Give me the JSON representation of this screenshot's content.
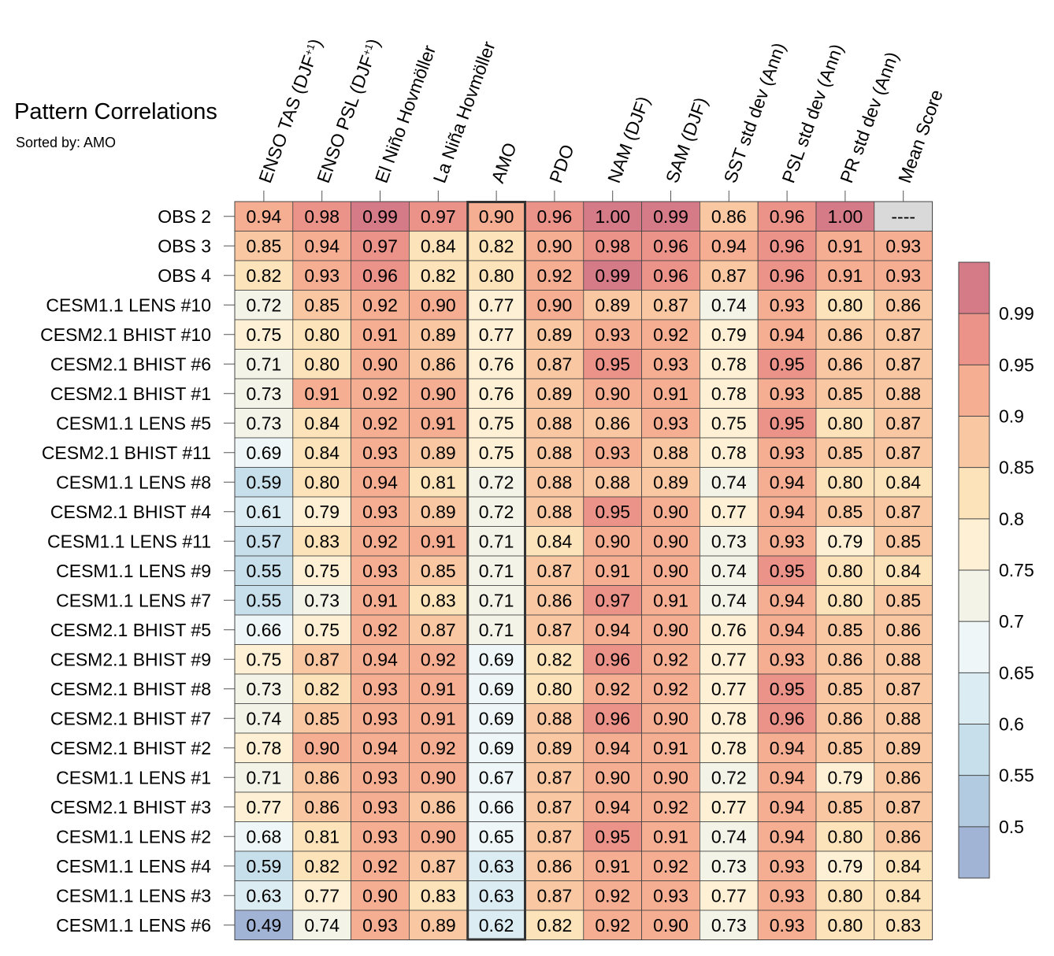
{
  "title": "Pattern Correlations",
  "subtitle": "Sorted by: AMO",
  "chart_data": {
    "type": "heatmap",
    "columns": [
      "ENSO TAS (DJF+1)",
      "ENSO PSL (DJF+1)",
      "El Niño Hovmöller",
      "La Niña Hovmöller",
      "AMO",
      "PDO",
      "NAM (DJF)",
      "SAM (DJF)",
      "SST std dev (Ann)",
      "PSL std dev (Ann)",
      "PR std dev (Ann)",
      "Mean Score"
    ],
    "highlighted_column": "AMO",
    "rows": [
      {
        "label": "OBS 2",
        "values": [
          "0.94",
          "0.98",
          "0.99",
          "0.97",
          "0.90",
          "0.96",
          "1.00",
          "0.99",
          "0.86",
          "0.96",
          "1.00",
          "----"
        ]
      },
      {
        "label": "OBS 3",
        "values": [
          "0.85",
          "0.94",
          "0.97",
          "0.84",
          "0.82",
          "0.90",
          "0.98",
          "0.96",
          "0.94",
          "0.96",
          "0.91",
          "0.93"
        ]
      },
      {
        "label": "OBS 4",
        "values": [
          "0.82",
          "0.93",
          "0.96",
          "0.82",
          "0.80",
          "0.92",
          "0.99",
          "0.96",
          "0.87",
          "0.96",
          "0.91",
          "0.93"
        ]
      },
      {
        "label": "CESM1.1 LENS #10",
        "values": [
          "0.72",
          "0.85",
          "0.92",
          "0.90",
          "0.77",
          "0.90",
          "0.89",
          "0.87",
          "0.74",
          "0.93",
          "0.80",
          "0.86"
        ]
      },
      {
        "label": "CESM2.1 BHIST #10",
        "values": [
          "0.75",
          "0.80",
          "0.91",
          "0.89",
          "0.77",
          "0.89",
          "0.93",
          "0.92",
          "0.79",
          "0.94",
          "0.86",
          "0.87"
        ]
      },
      {
        "label": "CESM2.1 BHIST #6",
        "values": [
          "0.71",
          "0.80",
          "0.90",
          "0.86",
          "0.76",
          "0.87",
          "0.95",
          "0.93",
          "0.78",
          "0.95",
          "0.86",
          "0.87"
        ]
      },
      {
        "label": "CESM2.1 BHIST #1",
        "values": [
          "0.73",
          "0.91",
          "0.92",
          "0.90",
          "0.76",
          "0.89",
          "0.90",
          "0.91",
          "0.78",
          "0.93",
          "0.85",
          "0.88"
        ]
      },
      {
        "label": "CESM1.1 LENS #5",
        "values": [
          "0.73",
          "0.84",
          "0.92",
          "0.91",
          "0.75",
          "0.88",
          "0.86",
          "0.93",
          "0.75",
          "0.95",
          "0.80",
          "0.87"
        ]
      },
      {
        "label": "CESM2.1 BHIST #11",
        "values": [
          "0.69",
          "0.84",
          "0.93",
          "0.89",
          "0.75",
          "0.88",
          "0.93",
          "0.88",
          "0.78",
          "0.93",
          "0.85",
          "0.87"
        ]
      },
      {
        "label": "CESM1.1 LENS #8",
        "values": [
          "0.59",
          "0.80",
          "0.94",
          "0.81",
          "0.72",
          "0.88",
          "0.88",
          "0.89",
          "0.74",
          "0.94",
          "0.80",
          "0.84"
        ]
      },
      {
        "label": "CESM2.1 BHIST #4",
        "values": [
          "0.61",
          "0.79",
          "0.93",
          "0.89",
          "0.72",
          "0.88",
          "0.95",
          "0.90",
          "0.77",
          "0.94",
          "0.85",
          "0.87"
        ]
      },
      {
        "label": "CESM1.1 LENS #11",
        "values": [
          "0.57",
          "0.83",
          "0.92",
          "0.91",
          "0.71",
          "0.84",
          "0.90",
          "0.90",
          "0.73",
          "0.93",
          "0.79",
          "0.85"
        ]
      },
      {
        "label": "CESM1.1 LENS #9",
        "values": [
          "0.55",
          "0.75",
          "0.93",
          "0.85",
          "0.71",
          "0.87",
          "0.91",
          "0.90",
          "0.74",
          "0.95",
          "0.80",
          "0.84"
        ]
      },
      {
        "label": "CESM1.1 LENS #7",
        "values": [
          "0.55",
          "0.73",
          "0.91",
          "0.83",
          "0.71",
          "0.86",
          "0.97",
          "0.91",
          "0.74",
          "0.94",
          "0.80",
          "0.85"
        ]
      },
      {
        "label": "CESM2.1 BHIST #5",
        "values": [
          "0.66",
          "0.75",
          "0.92",
          "0.87",
          "0.71",
          "0.87",
          "0.94",
          "0.90",
          "0.76",
          "0.94",
          "0.85",
          "0.86"
        ]
      },
      {
        "label": "CESM2.1 BHIST #9",
        "values": [
          "0.75",
          "0.87",
          "0.94",
          "0.92",
          "0.69",
          "0.82",
          "0.96",
          "0.92",
          "0.77",
          "0.93",
          "0.86",
          "0.88"
        ]
      },
      {
        "label": "CESM2.1 BHIST #8",
        "values": [
          "0.73",
          "0.82",
          "0.93",
          "0.91",
          "0.69",
          "0.80",
          "0.92",
          "0.92",
          "0.77",
          "0.95",
          "0.85",
          "0.87"
        ]
      },
      {
        "label": "CESM2.1 BHIST #7",
        "values": [
          "0.74",
          "0.85",
          "0.93",
          "0.91",
          "0.69",
          "0.88",
          "0.96",
          "0.90",
          "0.78",
          "0.96",
          "0.86",
          "0.88"
        ]
      },
      {
        "label": "CESM2.1 BHIST #2",
        "values": [
          "0.78",
          "0.90",
          "0.94",
          "0.92",
          "0.69",
          "0.89",
          "0.94",
          "0.91",
          "0.78",
          "0.94",
          "0.85",
          "0.89"
        ]
      },
      {
        "label": "CESM1.1 LENS #1",
        "values": [
          "0.71",
          "0.86",
          "0.93",
          "0.90",
          "0.67",
          "0.87",
          "0.90",
          "0.90",
          "0.72",
          "0.94",
          "0.79",
          "0.86"
        ]
      },
      {
        "label": "CESM2.1 BHIST #3",
        "values": [
          "0.77",
          "0.86",
          "0.93",
          "0.86",
          "0.66",
          "0.87",
          "0.94",
          "0.92",
          "0.77",
          "0.94",
          "0.85",
          "0.87"
        ]
      },
      {
        "label": "CESM1.1 LENS #2",
        "values": [
          "0.68",
          "0.81",
          "0.93",
          "0.90",
          "0.65",
          "0.87",
          "0.95",
          "0.91",
          "0.74",
          "0.94",
          "0.80",
          "0.86"
        ]
      },
      {
        "label": "CESM1.1 LENS #4",
        "values": [
          "0.59",
          "0.82",
          "0.92",
          "0.87",
          "0.63",
          "0.86",
          "0.91",
          "0.92",
          "0.73",
          "0.93",
          "0.79",
          "0.84"
        ]
      },
      {
        "label": "CESM1.1 LENS #3",
        "values": [
          "0.63",
          "0.77",
          "0.90",
          "0.83",
          "0.63",
          "0.87",
          "0.92",
          "0.93",
          "0.77",
          "0.93",
          "0.80",
          "0.84"
        ]
      },
      {
        "label": "CESM1.1 LENS #6",
        "values": [
          "0.49",
          "0.74",
          "0.93",
          "0.89",
          "0.62",
          "0.82",
          "0.92",
          "0.90",
          "0.73",
          "0.93",
          "0.80",
          "0.83"
        ]
      }
    ],
    "colorbar": {
      "tick_labels": [
        "0.99",
        "0.95",
        "0.9",
        "0.85",
        "0.8",
        "0.75",
        "0.7",
        "0.65",
        "0.6",
        "0.55",
        "0.5"
      ],
      "levels": [
        0.5,
        0.55,
        0.6,
        0.65,
        0.7,
        0.75,
        0.8,
        0.85,
        0.9,
        0.95,
        0.99
      ],
      "colors": [
        "#a1b4d6",
        "#b2cbe1",
        "#c7dfeb",
        "#dcecf3",
        "#eef6f7",
        "#f4f3e8",
        "#fdf0d4",
        "#fce3ba",
        "#f9c7a1",
        "#f5ae92",
        "#eb9289",
        "#d57a87"
      ],
      "missing_color": "#d9d9d9"
    }
  }
}
